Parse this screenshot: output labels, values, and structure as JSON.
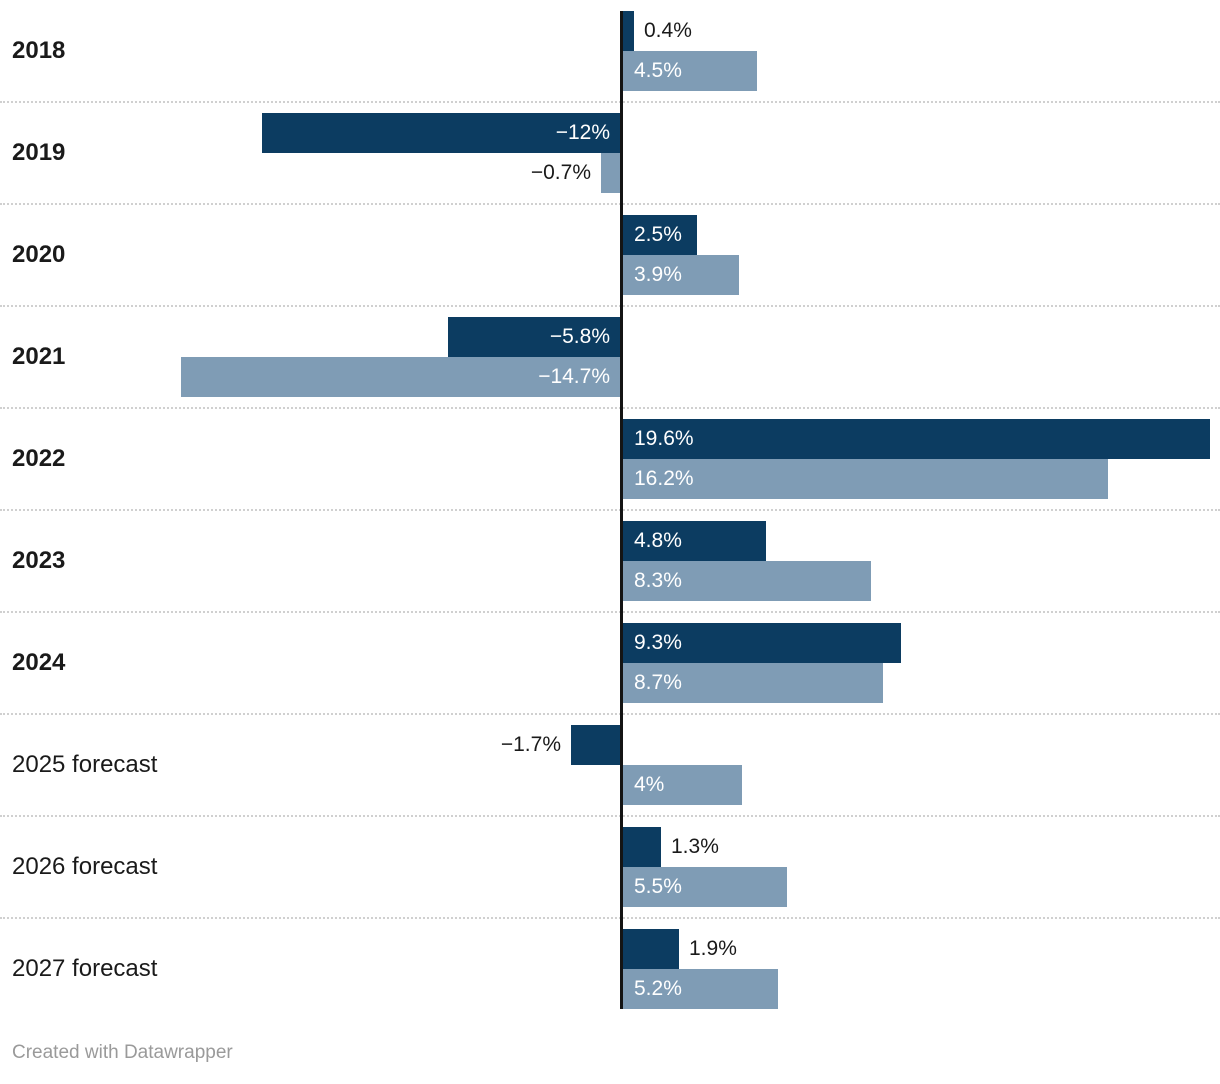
{
  "footer": {
    "credit": "Created with Datawrapper"
  },
  "colors": {
    "series_dark": "#0c3c61",
    "series_light": "#7f9cb5",
    "axis_line": "#141414",
    "row_separator": "#d0d0d0",
    "label_inside": "#ffffff",
    "label_outside": "#1a1a1a",
    "category_label": "#1a1a1a",
    "credit_text": "#9a9a9a"
  },
  "chart_data": {
    "type": "bar",
    "orientation": "horizontal",
    "value_unit": "percent",
    "title": "",
    "xlabel": "",
    "ylabel": "",
    "xlim": [
      -15,
      20
    ],
    "legend": "none",
    "grid": "dotted horizontal row separators, vertical zero baseline",
    "categories": [
      "2018",
      "2019",
      "2020",
      "2021",
      "2022",
      "2023",
      "2024",
      "2025 forecast",
      "2026 forecast",
      "2027 forecast"
    ],
    "category_emphasis": [
      true,
      true,
      true,
      true,
      true,
      true,
      true,
      false,
      false,
      false
    ],
    "series": [
      {
        "name": "dark-blue",
        "color": "#0c3c61",
        "values": [
          0.4,
          -12,
          2.5,
          -5.8,
          19.6,
          4.8,
          9.3,
          -1.7,
          1.3,
          1.9
        ],
        "labels": [
          "0.4%",
          "−12%",
          "2.5%",
          "−5.8%",
          "19.6%",
          "4.8%",
          "9.3%",
          "−1.7%",
          "1.3%",
          "1.9%"
        ]
      },
      {
        "name": "light-blue",
        "color": "#7f9cb5",
        "values": [
          4.5,
          -0.7,
          3.9,
          -14.7,
          16.2,
          8.3,
          8.7,
          4,
          5.5,
          5.2
        ],
        "labels": [
          "4.5%",
          "−0.7%",
          "3.9%",
          "−14.7%",
          "16.2%",
          "8.3%",
          "8.7%",
          "4%",
          "5.5%",
          "5.2%"
        ]
      }
    ]
  }
}
